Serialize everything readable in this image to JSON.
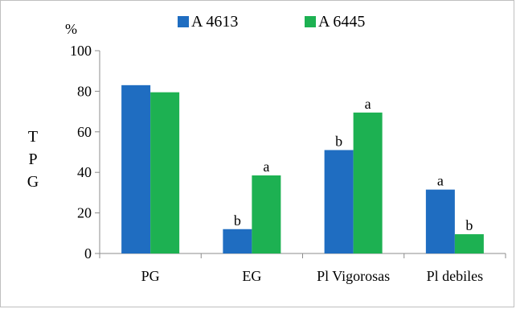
{
  "chart_data": {
    "type": "bar",
    "title": "",
    "xlabel": "",
    "ylabel": "TPG",
    "y_unit": "%",
    "ylim": [
      0,
      100
    ],
    "y_ticks": [
      0,
      20,
      40,
      60,
      80,
      100
    ],
    "grid": false,
    "legend_position": "top",
    "categories": [
      "PG",
      "EG",
      "Pl Vigorosas",
      "Pl debiles"
    ],
    "series": [
      {
        "name": "A 4613",
        "color": "#1f6dc1",
        "values": [
          83,
          12,
          51,
          31.5
        ],
        "labels": [
          "",
          "b",
          "b",
          "a"
        ]
      },
      {
        "name": "A 6445",
        "color": "#1db152",
        "values": [
          79.5,
          38.5,
          69.5,
          9.5
        ],
        "labels": [
          "",
          "a",
          "a",
          "b"
        ]
      }
    ]
  }
}
